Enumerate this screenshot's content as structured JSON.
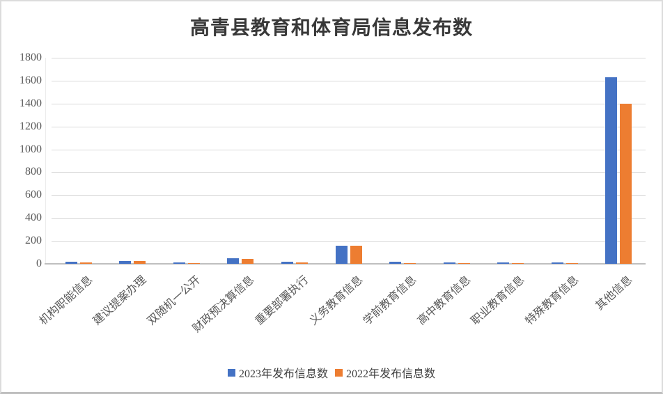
{
  "chart_data": {
    "type": "bar",
    "title": "高青县教育和体育局信息发布数",
    "categories": [
      "机构职能信息",
      "建议提案办理",
      "双随机一公开",
      "财政预决算信息",
      "重要部署执行",
      "义务教育信息",
      "学前教育信息",
      "高中教育信息",
      "职业教育信息",
      "特殊教育信息",
      "其他信息"
    ],
    "series": [
      {
        "name": "2023年发布信息数",
        "color": "#4472C4",
        "values": [
          20,
          25,
          13,
          50,
          17,
          160,
          18,
          11,
          13,
          11,
          1630
        ]
      },
      {
        "name": "2022年发布信息数",
        "color": "#ED7D31",
        "values": [
          13,
          23,
          9,
          45,
          15,
          160,
          7,
          7,
          9,
          8,
          1400
        ]
      }
    ],
    "xlabel": "",
    "ylabel": "",
    "ylim": [
      0,
      1800
    ],
    "yticks": [
      0,
      200,
      400,
      600,
      800,
      1000,
      1200,
      1400,
      1600,
      1800
    ],
    "grid": true,
    "legend_position": "bottom"
  },
  "colors": {
    "grid": "#d9d9d9",
    "axis": "#bfbfbf",
    "tick_text": "#595959",
    "title_text": "#383838"
  }
}
